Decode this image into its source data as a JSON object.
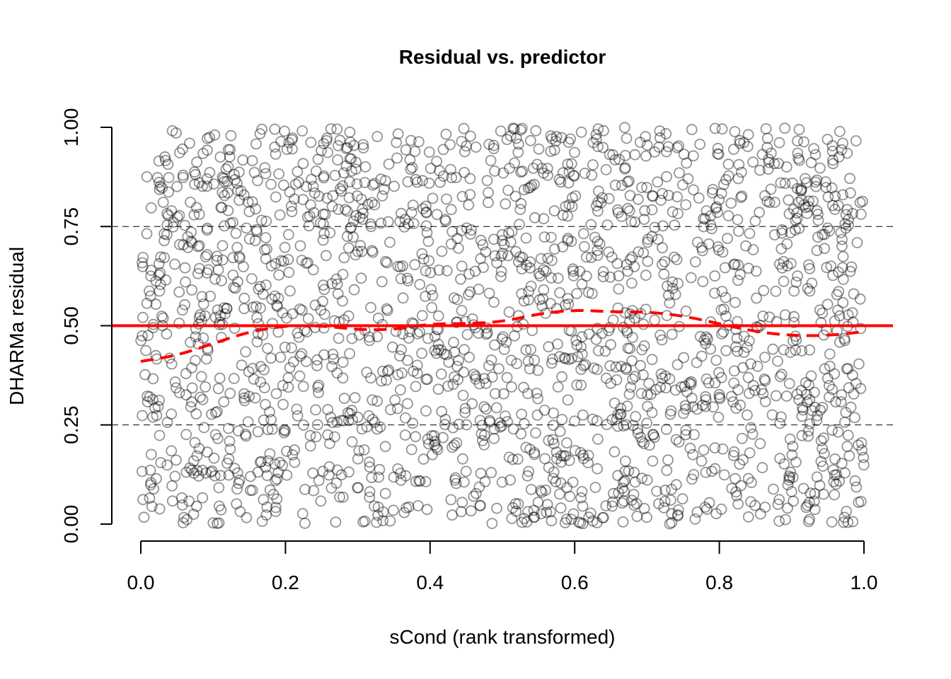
{
  "chart_data": {
    "type": "scatter",
    "title": "Residual vs. predictor",
    "xlabel": "sCond (rank transformed)",
    "ylabel": "DHARMa residual",
    "xlim": [
      0,
      1
    ],
    "ylim": [
      0,
      1
    ],
    "x_ticks": [
      "0.0",
      "0.2",
      "0.4",
      "0.6",
      "0.8",
      "1.0"
    ],
    "y_ticks": [
      "0.00",
      "0.25",
      "0.50",
      "0.75",
      "1.00"
    ],
    "grid": false,
    "quantile_reference_lines": [
      0.25,
      0.75
    ],
    "expected_line": 0.5,
    "smooth_line": [
      [
        0.0,
        0.41
      ],
      [
        0.05,
        0.425
      ],
      [
        0.1,
        0.455
      ],
      [
        0.15,
        0.485
      ],
      [
        0.2,
        0.5
      ],
      [
        0.25,
        0.5
      ],
      [
        0.3,
        0.49
      ],
      [
        0.35,
        0.49
      ],
      [
        0.4,
        0.505
      ],
      [
        0.45,
        0.505
      ],
      [
        0.5,
        0.51
      ],
      [
        0.55,
        0.53
      ],
      [
        0.6,
        0.54
      ],
      [
        0.65,
        0.535
      ],
      [
        0.7,
        0.535
      ],
      [
        0.75,
        0.525
      ],
      [
        0.8,
        0.505
      ],
      [
        0.85,
        0.485
      ],
      [
        0.9,
        0.475
      ],
      [
        0.95,
        0.475
      ],
      [
        1.0,
        0.485
      ]
    ],
    "points_summary": {
      "count": 2000,
      "approx_distribution": "roughly uniform on [0,1] x [0,1]"
    },
    "colors": {
      "points": "#808080",
      "reference_line": "#ff0000",
      "smooth_line": "#ff0000",
      "quantile_lines": "#000000"
    }
  }
}
